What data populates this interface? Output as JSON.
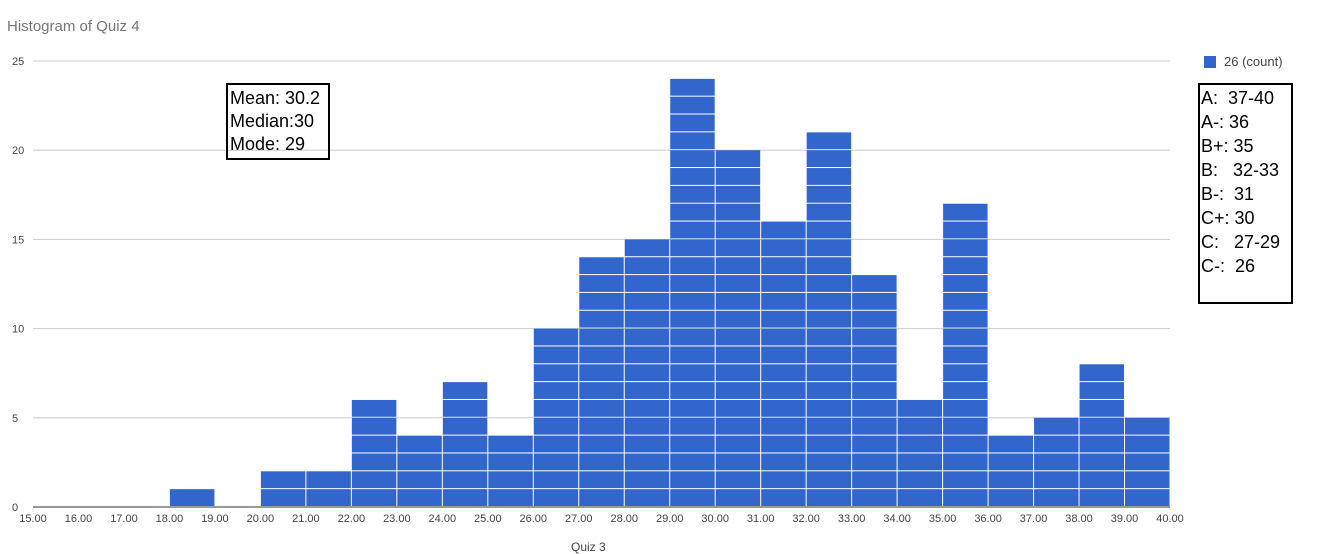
{
  "title": "Histogram of Quiz 4",
  "legend": {
    "label": "26 (count)",
    "color": "#3366cc"
  },
  "stats": {
    "lines": [
      "Mean: 30.2",
      "Median:30",
      "Mode: 29"
    ]
  },
  "grades": {
    "lines": [
      "A:  37-40",
      "A-: 36",
      "B+: 35",
      "B:   32-33",
      "B-:  31",
      "C+: 30",
      "C:   27-29",
      "C-:  26"
    ]
  },
  "xaxis_title": "Quiz 3",
  "chart_data": {
    "type": "bar",
    "title": "Histogram of Quiz 4",
    "bin_edges": [
      15,
      16,
      17,
      18,
      19,
      20,
      21,
      22,
      23,
      24,
      25,
      26,
      27,
      28,
      29,
      30,
      31,
      32,
      33,
      34,
      35,
      36,
      37,
      38,
      39,
      40
    ],
    "values": [
      0,
      0,
      0,
      1,
      0,
      2,
      2,
      6,
      4,
      7,
      4,
      10,
      14,
      15,
      24,
      20,
      16,
      21,
      13,
      6,
      17,
      4,
      5,
      8,
      5
    ],
    "x_tick_labels": [
      "15.00",
      "16.00",
      "17.00",
      "18.00",
      "19.00",
      "20.00",
      "21.00",
      "22.00",
      "23.00",
      "24.00",
      "25.00",
      "26.00",
      "27.00",
      "28.00",
      "29.00",
      "30.00",
      "31.00",
      "32.00",
      "33.00",
      "34.00",
      "35.00",
      "36.00",
      "37.00",
      "38.00",
      "39.00",
      "40.00"
    ],
    "y_ticks": [
      0,
      5,
      10,
      15,
      20,
      25
    ],
    "xlim": [
      15,
      40
    ],
    "ylim": [
      0,
      25
    ],
    "series": [
      {
        "name": "26 (count)",
        "color": "#3366cc"
      }
    ],
    "grid": true,
    "legend_position": "top-right",
    "stacked_unit_segments": true
  }
}
